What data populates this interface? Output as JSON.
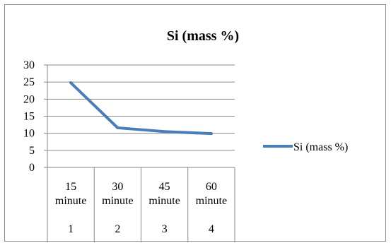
{
  "chart_data": {
    "type": "line",
    "title": "Si (mass %)",
    "xlabel": "",
    "ylabel": "",
    "ylim": [
      0,
      30
    ],
    "yticks": [
      0,
      5,
      10,
      15,
      20,
      25,
      30
    ],
    "categories": [
      {
        "top": "15",
        "mid": "minute",
        "bottom": "1"
      },
      {
        "top": "30",
        "mid": "minute",
        "bottom": "2"
      },
      {
        "top": "45",
        "mid": "minute",
        "bottom": "3"
      },
      {
        "top": "60",
        "mid": "minute",
        "bottom": "4"
      }
    ],
    "series": [
      {
        "name": "Si (mass %)",
        "values": [
          24.8,
          11.6,
          10.5,
          9.9
        ],
        "color": "#4a7ebb"
      }
    ],
    "grid": true,
    "legend": "right",
    "colors": {
      "gridline": "#868686",
      "axis": "#868686",
      "series": "#4a7ebb"
    }
  }
}
